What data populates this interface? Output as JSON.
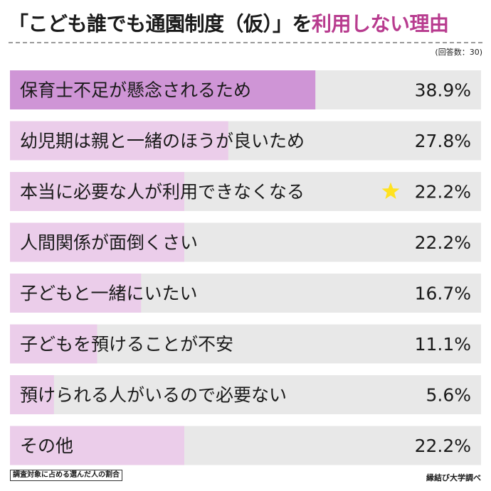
{
  "title": {
    "main": "「こども誰でも通園制度（仮）」を",
    "highlight": "利用しない理由"
  },
  "note": "(回答数：30)",
  "footer": {
    "left": "調査対象に占める選んだ人の割合",
    "right": "縁結び大学調べ"
  },
  "colors": {
    "highlight_text": "#b83c8f",
    "bar_top": "#cf95d6",
    "bar": "#ebcdea",
    "track": "#e8e8e8",
    "star": "#ffe21f"
  },
  "chart_data": {
    "type": "bar",
    "orientation": "horizontal",
    "categories": [
      "保育士不足が懸念されるため",
      "幼児期は親と一緒のほうが良いため",
      "本当に必要な人が利用できなくなる",
      "人間関係が面倒くさい",
      "子どもと一緒にいたい",
      "子どもを預けることが不安",
      "預けられる人がいるので必要ない",
      "その他"
    ],
    "values": [
      38.9,
      27.8,
      22.2,
      22.2,
      16.7,
      11.1,
      5.6,
      22.2
    ],
    "value_labels": [
      "38.9%",
      "27.8%",
      "22.2%",
      "22.2%",
      "16.7%",
      "11.1%",
      "5.6%",
      "22.2%"
    ],
    "star_icon": "star-icon",
    "star_category_index": 2,
    "xlim": [
      0,
      60
    ]
  }
}
